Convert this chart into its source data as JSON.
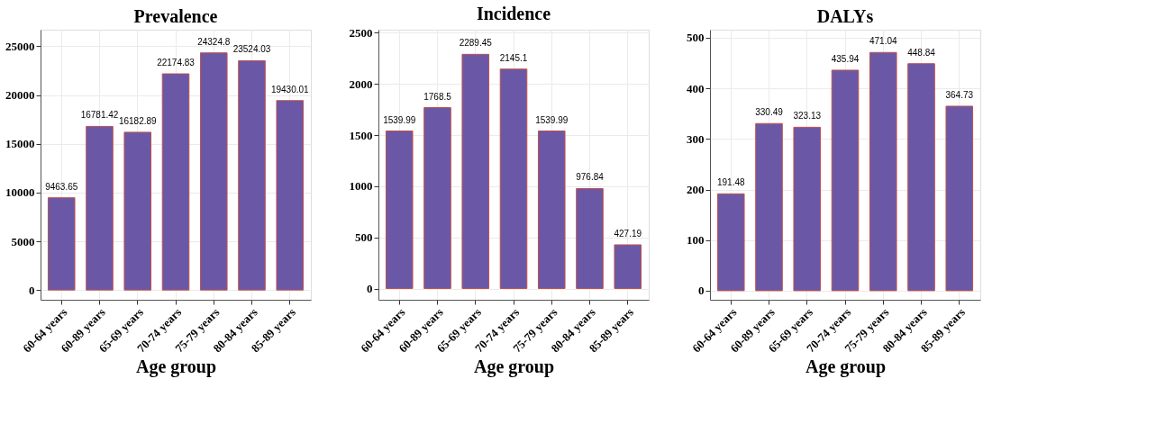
{
  "chart_data": [
    {
      "type": "bar",
      "title": "Prevalence",
      "xlabel": "Age group",
      "categories": [
        "60-64 years",
        "60-89 years",
        "65-69 years",
        "70-74 years",
        "75-79 years",
        "80-84 years",
        "85-89 years"
      ],
      "values": [
        9463.65,
        16781.42,
        16182.89,
        22174.83,
        24324.8,
        23524.03,
        19430.01
      ],
      "color": "#6a58a6",
      "ylim": [
        -1000,
        26700
      ],
      "yticks": [
        0,
        5000,
        10000,
        15000,
        20000,
        25000
      ],
      "grid": true,
      "data_labels": true
    },
    {
      "type": "bar",
      "title": "Incidence",
      "xlabel": "Age group",
      "categories": [
        "60-64 years",
        "60-89 years",
        "65-69 years",
        "70-74 years",
        "75-79 years",
        "80-84 years",
        "85-89 years"
      ],
      "values": [
        1539.99,
        1768.5,
        2289.45,
        2145.1,
        1539.99,
        976.84,
        427.19
      ],
      "color": "#6a58a6",
      "ylim": [
        -110,
        2530
      ],
      "yticks": [
        0,
        500,
        1000,
        1500,
        2000,
        2500
      ],
      "grid": true,
      "data_labels": true
    },
    {
      "type": "bar",
      "title": "DALYs",
      "xlabel": "Age group",
      "categories": [
        "60-64 years",
        "60-89 years",
        "65-69 years",
        "70-74 years",
        "75-79 years",
        "80-84 years",
        "85-89 years"
      ],
      "values": [
        191.48,
        330.49,
        323.13,
        435.94,
        471.04,
        448.84,
        364.73
      ],
      "color": "#6a58a6",
      "ylim": [
        -18,
        516
      ],
      "yticks": [
        0,
        100,
        200,
        300,
        400,
        500
      ],
      "grid": true,
      "data_labels": true
    }
  ]
}
